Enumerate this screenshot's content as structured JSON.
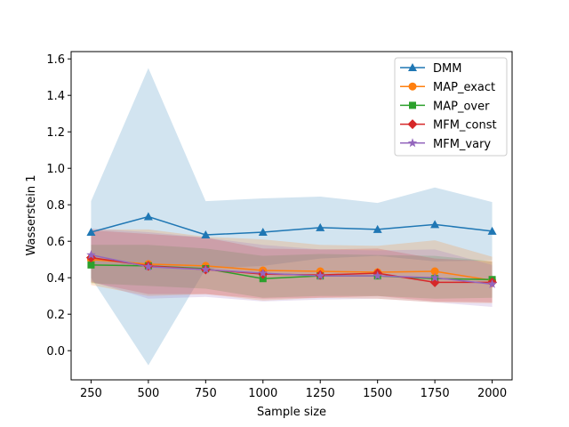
{
  "chart_data": {
    "type": "line",
    "title": "",
    "xlabel": "Sample size",
    "ylabel": "Wasserstein 1",
    "x": [
      250,
      500,
      750,
      1000,
      1250,
      1500,
      1750,
      2000
    ],
    "xticks": [
      250,
      500,
      750,
      1000,
      1250,
      1500,
      1750,
      2000
    ],
    "yticks": [
      0.0,
      0.2,
      0.4,
      0.6,
      0.8,
      1.0,
      1.2,
      1.4,
      1.6
    ],
    "xlim": [
      163,
      2087
    ],
    "ylim": [
      -0.16,
      1.64
    ],
    "grid": false,
    "legend_position": "top-right",
    "series": [
      {
        "name": "DMM",
        "color": "#1f77b4",
        "marker": "triangle",
        "values": [
          0.65,
          0.735,
          0.635,
          0.65,
          0.675,
          0.665,
          0.692,
          0.655
        ],
        "upper": [
          0.82,
          1.55,
          0.82,
          0.835,
          0.845,
          0.81,
          0.895,
          0.815
        ],
        "lower": [
          0.4,
          -0.08,
          0.45,
          0.465,
          0.505,
          0.52,
          0.49,
          0.495
        ]
      },
      {
        "name": "MAP_exact",
        "color": "#ff7f0e",
        "marker": "circle",
        "values": [
          0.5,
          0.475,
          0.465,
          0.44,
          0.435,
          0.43,
          0.435,
          0.385
        ],
        "upper": [
          0.665,
          0.665,
          0.625,
          0.61,
          0.58,
          0.575,
          0.605,
          0.515
        ],
        "lower": [
          0.36,
          0.3,
          0.31,
          0.275,
          0.29,
          0.285,
          0.265,
          0.26
        ]
      },
      {
        "name": "MAP_over",
        "color": "#2ca02c",
        "marker": "square",
        "values": [
          0.47,
          0.465,
          0.45,
          0.395,
          0.41,
          0.41,
          0.395,
          0.39
        ],
        "upper": [
          0.58,
          0.58,
          0.56,
          0.52,
          0.53,
          0.525,
          0.52,
          0.49
        ],
        "lower": [
          0.37,
          0.355,
          0.34,
          0.29,
          0.3,
          0.3,
          0.285,
          0.29
        ]
      },
      {
        "name": "MFM_const",
        "color": "#d62728",
        "marker": "diamond",
        "values": [
          0.51,
          0.465,
          0.445,
          0.42,
          0.415,
          0.425,
          0.375,
          0.375
        ],
        "upper": [
          0.66,
          0.64,
          0.62,
          0.56,
          0.555,
          0.56,
          0.505,
          0.49
        ],
        "lower": [
          0.375,
          0.31,
          0.31,
          0.285,
          0.29,
          0.3,
          0.27,
          0.265
        ]
      },
      {
        "name": "MFM_vary",
        "color": "#9467bd",
        "marker": "star",
        "values": [
          0.525,
          0.46,
          0.445,
          0.425,
          0.41,
          0.41,
          0.4,
          0.365
        ],
        "upper": [
          0.67,
          0.65,
          0.62,
          0.58,
          0.555,
          0.55,
          0.555,
          0.47
        ],
        "lower": [
          0.38,
          0.285,
          0.295,
          0.27,
          0.28,
          0.285,
          0.265,
          0.24
        ]
      }
    ]
  }
}
